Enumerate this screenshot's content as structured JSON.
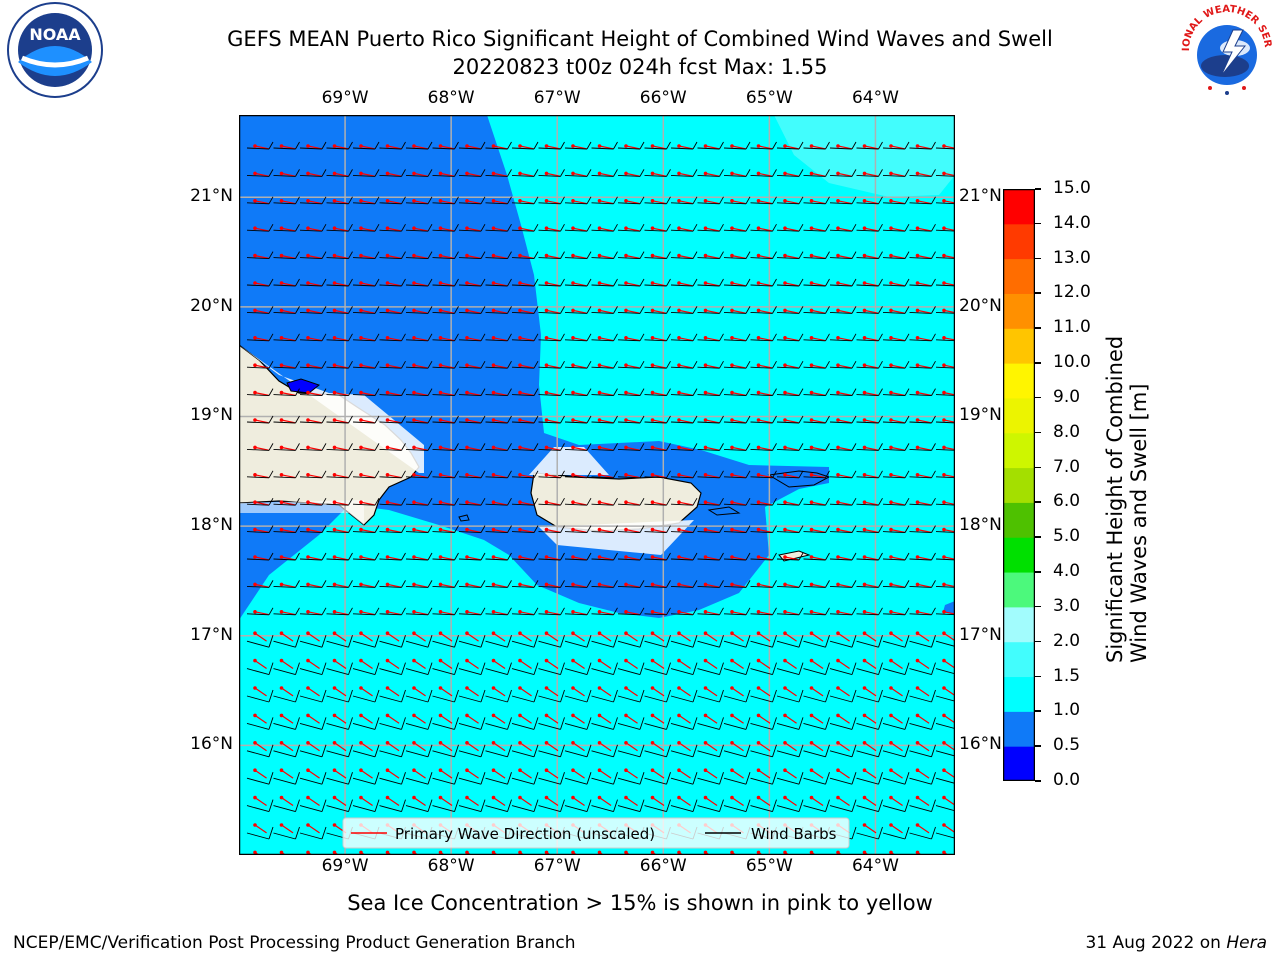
{
  "title": {
    "line1": "GEFS MEAN Puerto Rico Significant Height of Combined Wind Waves and Swell",
    "line2": "20220823 t00z 024h fcst   Max: 1.55"
  },
  "logos": {
    "left": "NOAA",
    "left_ring": "NATIONAL OCEANIC AND ATMOSPHERIC ADMINISTRATION · U.S. DEPARTMENT OF COMMERCE",
    "right": "NATIONAL WEATHER SERVICE"
  },
  "map": {
    "lon_ticks": [
      "69°W",
      "68°W",
      "67°W",
      "66°W",
      "65°W",
      "64°W"
    ],
    "lat_ticks": [
      "21°N",
      "20°N",
      "19°N",
      "18°N",
      "17°N",
      "16°N"
    ],
    "lon_values": [
      -69,
      -68,
      -67,
      -66,
      -65,
      -64
    ],
    "lat_values": [
      21,
      20,
      19,
      18,
      17,
      16
    ],
    "extent": {
      "lon_min": -70.0,
      "lon_max": -63.25,
      "lat_min": 15.0,
      "lat_max": 21.75
    },
    "land_color": "#efedde",
    "ocean_colors": {
      "0.5-1.0": "#0f7af8",
      "1.0-1.5": "#00ffff",
      "1.5-2.0": "#42fdfd"
    },
    "legend": {
      "wave_label": "Primary Wave Direction (unscaled)",
      "barb_label": "Wind Barbs"
    }
  },
  "colorbar": {
    "label_line1": "Significant Height of Combined",
    "label_line2": "Wind Waves and Swell [m]",
    "ticks": [
      "0.0",
      "0.5",
      "1.0",
      "1.5",
      "2.0",
      "3.0",
      "4.0",
      "5.0",
      "6.0",
      "7.0",
      "8.0",
      "9.0",
      "10.0",
      "11.0",
      "12.0",
      "13.0",
      "14.0",
      "15.0"
    ],
    "colors": [
      "#0000ff",
      "#0f7af8",
      "#00ffff",
      "#42fdfd",
      "#a2fcfd",
      "#4cf97c",
      "#00e000",
      "#4ec100",
      "#a4df00",
      "#cef600",
      "#ecf400",
      "#fff500",
      "#ffc500",
      "#ff9000",
      "#ff6d00",
      "#ff3a00",
      "#ff0000"
    ]
  },
  "note": "Sea Ice Concentration > 15% is shown in pink to yellow",
  "footer": {
    "left": "NCEP/EMC/Verification Post Processing Product Generation Branch",
    "right_prefix": "31 Aug 2022 on ",
    "right_host": "Hera"
  }
}
